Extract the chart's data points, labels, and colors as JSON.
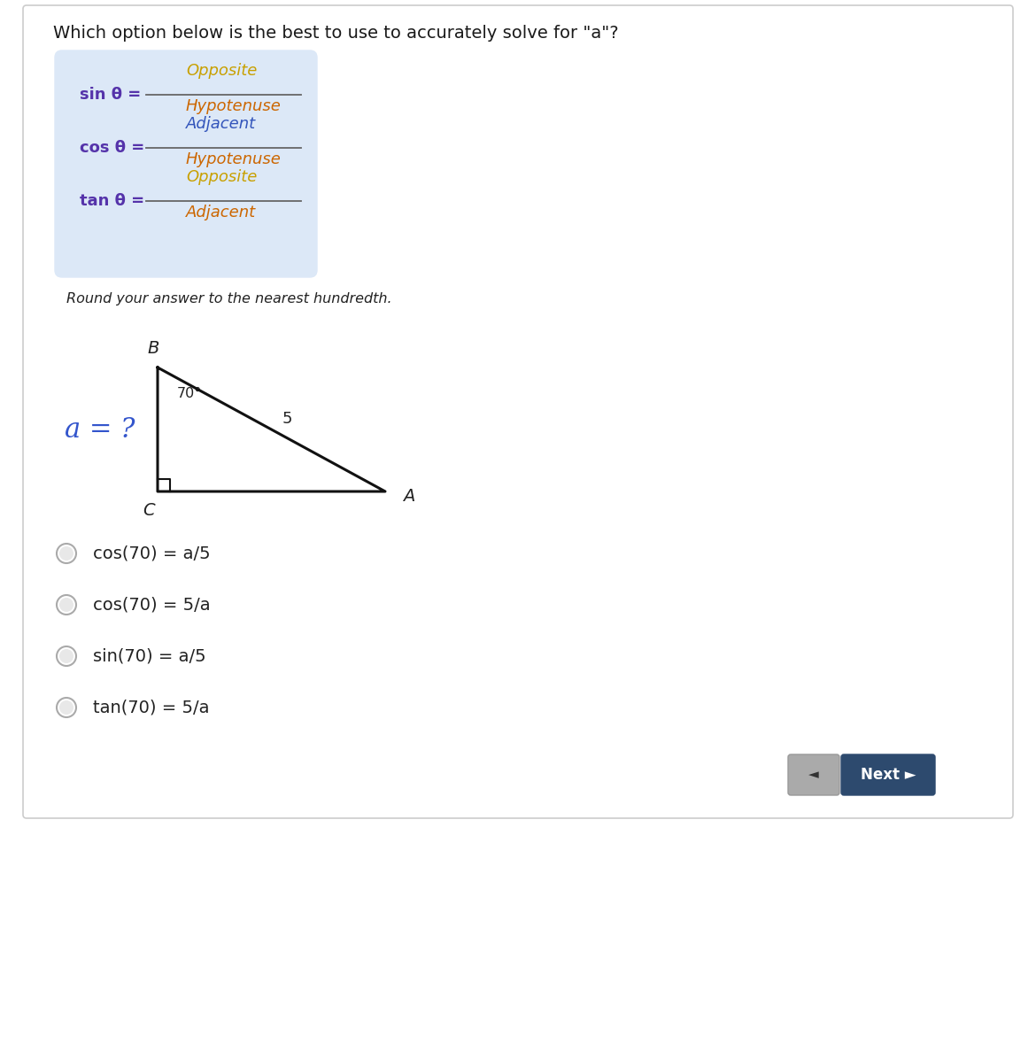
{
  "title": "Which option below is the best to use to accurately solve for \"a\"?",
  "title_fontsize": 14,
  "title_color": "#1a1a1a",
  "bg_color": "#ffffff",
  "card_bg_color": "#dce8f7",
  "sin_label": "sin θ =",
  "cos_label": "cos θ =",
  "tan_label": "tan θ =",
  "trig_label_color": "#5533aa",
  "trig_numerator_colors": [
    "#c8a000",
    "#3355bb",
    "#c8a000"
  ],
  "trig_denominator_color": "#cc6600",
  "trig_numerators": [
    "Opposite",
    "Adjacent",
    "Opposite"
  ],
  "trig_denominators": [
    "Hypotenuse",
    "Hypotenuse",
    "Adjacent"
  ],
  "round_text": "Round your answer to the nearest hundredth.",
  "angle_label": "70°",
  "hyp_label": "5",
  "a_label": "a = ?",
  "a_label_color": "#3355cc",
  "vertex_A_label": "A",
  "vertex_B_label": "B",
  "vertex_C_label": "C",
  "options": [
    "cos(70) = a/5",
    "cos(70) = 5/a",
    "sin(70) = a/5",
    "tan(70) = 5/a"
  ],
  "next_button_color": "#2d4a6e",
  "next_button_text": "Next ►",
  "back_button_color": "#aaaaaa"
}
